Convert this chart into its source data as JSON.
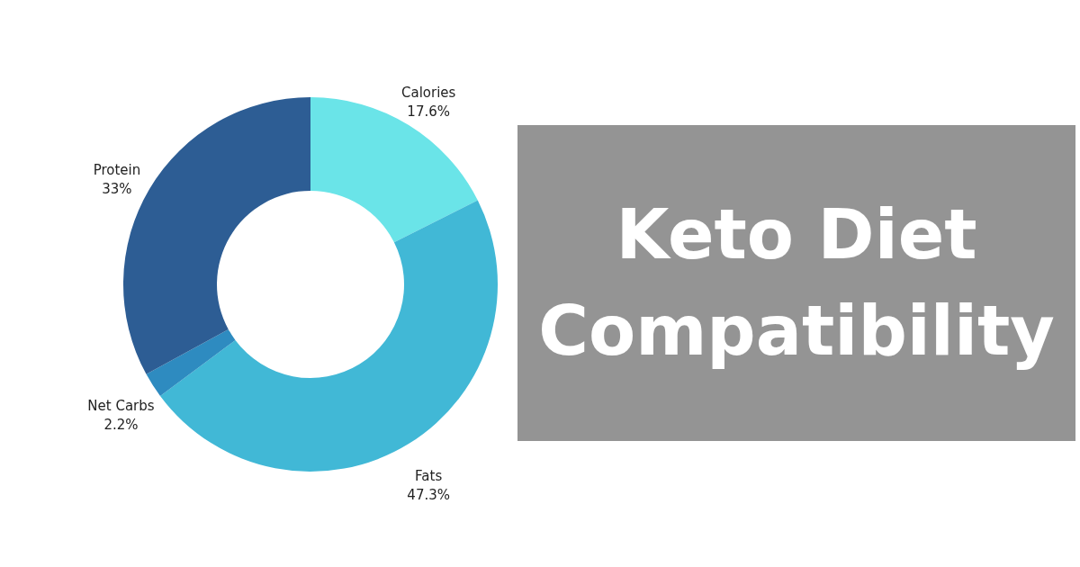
{
  "chart_data": {
    "type": "donut",
    "title": "Keto Diet Compatibility",
    "categories": [
      "Calories",
      "Fats",
      "Net Carbs",
      "Protein"
    ],
    "values": [
      17.6,
      47.3,
      2.2,
      33
    ],
    "colors": [
      "#6ae4e8",
      "#41b8d6",
      "#2e8bc0",
      "#2d5d94"
    ],
    "value_labels": [
      "17.6%",
      "47.3%",
      "2.2%",
      "33%"
    ]
  }
}
